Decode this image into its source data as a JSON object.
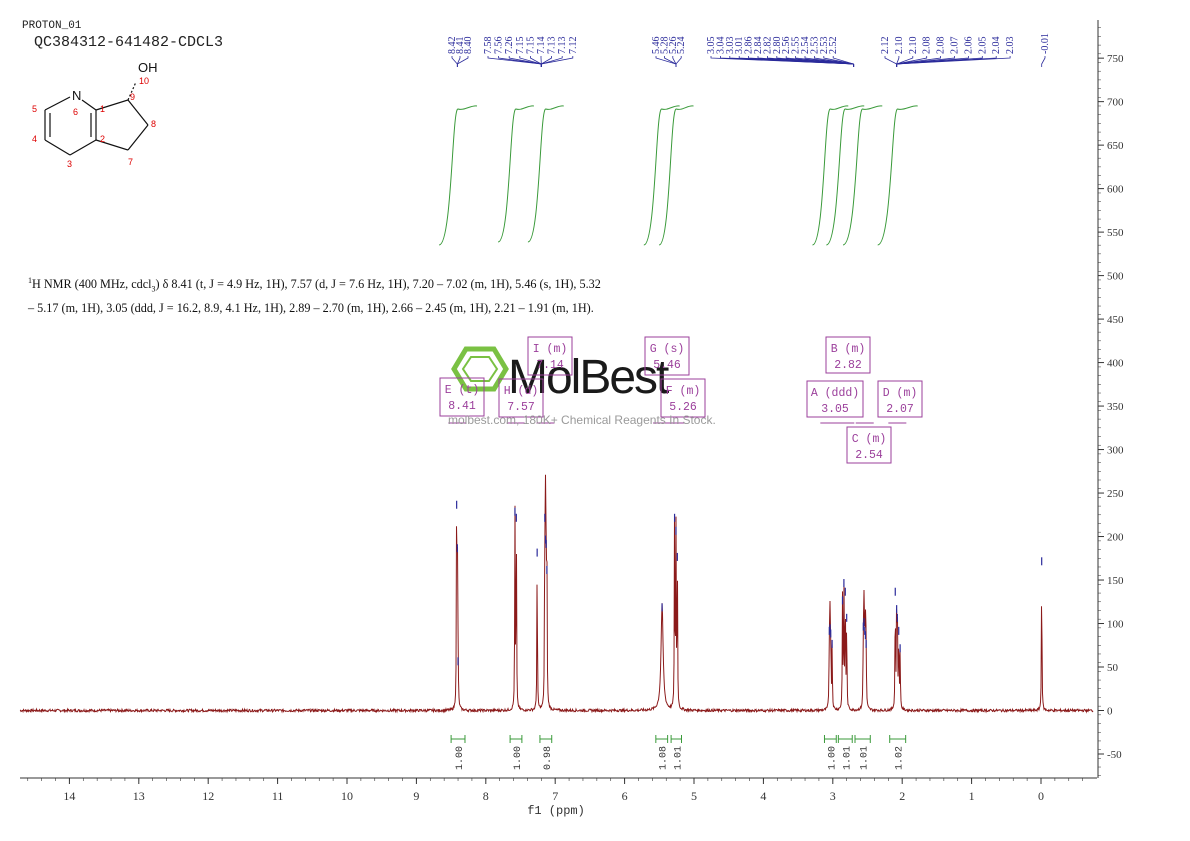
{
  "header": {
    "experiment": "PROTON_01",
    "sample": "QC384312-641482-CDCL3"
  },
  "structure": {
    "substituent": "OH",
    "atom_numbers": [
      "1",
      "2",
      "3",
      "4",
      "5",
      "6",
      "7",
      "8",
      "9",
      "10"
    ],
    "ring_atom": "N"
  },
  "description": {
    "sup": "1",
    "text_a": "H NMR (400 MHz, cdcl",
    "sub": "3",
    "text_b": ") δ 8.41 (t, J = 4.9 Hz, 1H), 7.57 (d, J = 7.6 Hz, 1H), 7.20 – 7.02 (m, 1H), 5.46 (s, 1H), 5.32 – 5.17 (m, 1H), 3.05 (ddd, J = 16.2, 8.9, 4.1 Hz, 1H), 2.89 – 2.70 (m, 1H), 2.66 – 2.45 (m, 1H), 2.21 – 1.91 (m, 1H)."
  },
  "watermark": {
    "brand": "MolBest",
    "tagline": "molbest.com, 180K+ Chemical Reagents In Stock."
  },
  "colors": {
    "spectrum": "#8b1a1a",
    "integral": "#3a9a3a",
    "peak_labels": "#2b2b9b",
    "multiplet_boxes": "#9b3f9b",
    "axis": "#333333",
    "watermark_logo": "#7ac143"
  },
  "chart_data": {
    "type": "line",
    "xlabel": "f1 (ppm)",
    "ylabel": "",
    "x_reversed": true,
    "xlim": [
      14.7,
      -0.75
    ],
    "ylim": [
      -75,
      795
    ],
    "x_ticks": [
      "14",
      "13",
      "12",
      "11",
      "10",
      "9",
      "8",
      "7",
      "6",
      "5",
      "4",
      "3",
      "2",
      "1",
      "0"
    ],
    "y_ticks": [
      "750",
      "700",
      "650",
      "600",
      "550",
      "500",
      "450",
      "400",
      "350",
      "300",
      "250",
      "200",
      "150",
      "100",
      "50",
      "0",
      "-50"
    ],
    "peak_labels": [
      "8.42",
      "8.41",
      "8.40",
      "7.58",
      "7.56",
      "7.26",
      "7.15",
      "7.15",
      "7.14",
      "7.13",
      "7.13",
      "7.12",
      "5.46",
      "5.28",
      "5.26",
      "5.24",
      "3.05",
      "3.04",
      "3.03",
      "3.01",
      "2.86",
      "2.84",
      "2.82",
      "2.80",
      "2.56",
      "2.55",
      "2.54",
      "2.53",
      "2.53",
      "2.52",
      "2.12",
      "2.10",
      "2.10",
      "2.08",
      "2.08",
      "2.07",
      "2.06",
      "2.05",
      "2.04",
      "2.03",
      "-0.01"
    ],
    "peaks": [
      {
        "ppm": 8.42,
        "height": 240
      },
      {
        "ppm": 8.41,
        "height": 190
      },
      {
        "ppm": 8.4,
        "height": 60
      },
      {
        "ppm": 7.58,
        "height": 232
      },
      {
        "ppm": 7.56,
        "height": 225
      },
      {
        "ppm": 7.26,
        "height": 185
      },
      {
        "ppm": 7.15,
        "height": 225
      },
      {
        "ppm": 7.14,
        "height": 200
      },
      {
        "ppm": 7.13,
        "height": 195
      },
      {
        "ppm": 7.12,
        "height": 165
      },
      {
        "ppm": 5.46,
        "height": 122
      },
      {
        "ppm": 5.28,
        "height": 225
      },
      {
        "ppm": 5.26,
        "height": 210
      },
      {
        "ppm": 5.24,
        "height": 180
      },
      {
        "ppm": 3.05,
        "height": 95
      },
      {
        "ppm": 3.04,
        "height": 98
      },
      {
        "ppm": 3.03,
        "height": 92
      },
      {
        "ppm": 3.01,
        "height": 80
      },
      {
        "ppm": 2.86,
        "height": 130
      },
      {
        "ppm": 2.84,
        "height": 150
      },
      {
        "ppm": 2.82,
        "height": 140
      },
      {
        "ppm": 2.8,
        "height": 110
      },
      {
        "ppm": 2.56,
        "height": 100
      },
      {
        "ppm": 2.55,
        "height": 105
      },
      {
        "ppm": 2.54,
        "height": 95
      },
      {
        "ppm": 2.53,
        "height": 90
      },
      {
        "ppm": 2.52,
        "height": 80
      },
      {
        "ppm": 2.1,
        "height": 140
      },
      {
        "ppm": 2.08,
        "height": 120
      },
      {
        "ppm": 2.07,
        "height": 110
      },
      {
        "ppm": 2.05,
        "height": 95
      },
      {
        "ppm": 2.03,
        "height": 75
      },
      {
        "ppm": -0.01,
        "height": 175
      }
    ],
    "integrals": [
      {
        "from": 8.5,
        "to": 8.3,
        "value": "1.00"
      },
      {
        "from": 7.65,
        "to": 7.48,
        "value": "1.00"
      },
      {
        "from": 7.22,
        "to": 7.05,
        "value": "0.98"
      },
      {
        "from": 5.55,
        "to": 5.38,
        "value": "1.08"
      },
      {
        "from": 5.33,
        "to": 5.18,
        "value": "1.01"
      },
      {
        "from": 3.12,
        "to": 2.95,
        "value": "1.00"
      },
      {
        "from": 2.92,
        "to": 2.72,
        "value": "1.01"
      },
      {
        "from": 2.68,
        "to": 2.46,
        "value": "1.01"
      },
      {
        "from": 2.18,
        "to": 1.95,
        "value": "1.02"
      }
    ],
    "multiplets": [
      {
        "id": "A",
        "mult": "ddd",
        "ppm": "3.05",
        "center": 3.05
      },
      {
        "id": "B",
        "mult": "m",
        "ppm": "2.82",
        "center": 2.82
      },
      {
        "id": "C",
        "mult": "m",
        "ppm": "2.54",
        "center": 2.54
      },
      {
        "id": "D",
        "mult": "m",
        "ppm": "2.07",
        "center": 2.07
      },
      {
        "id": "E",
        "mult": "t",
        "ppm": "8.41",
        "center": 8.41
      },
      {
        "id": "F",
        "mult": "m",
        "ppm": "5.26",
        "center": 5.26
      },
      {
        "id": "G",
        "mult": "s",
        "ppm": "5.46",
        "center": 5.46
      },
      {
        "id": "H",
        "mult": "d",
        "ppm": "7.57",
        "center": 7.57
      },
      {
        "id": "I",
        "mult": "m",
        "ppm": "7.14",
        "center": 7.14
      }
    ]
  }
}
